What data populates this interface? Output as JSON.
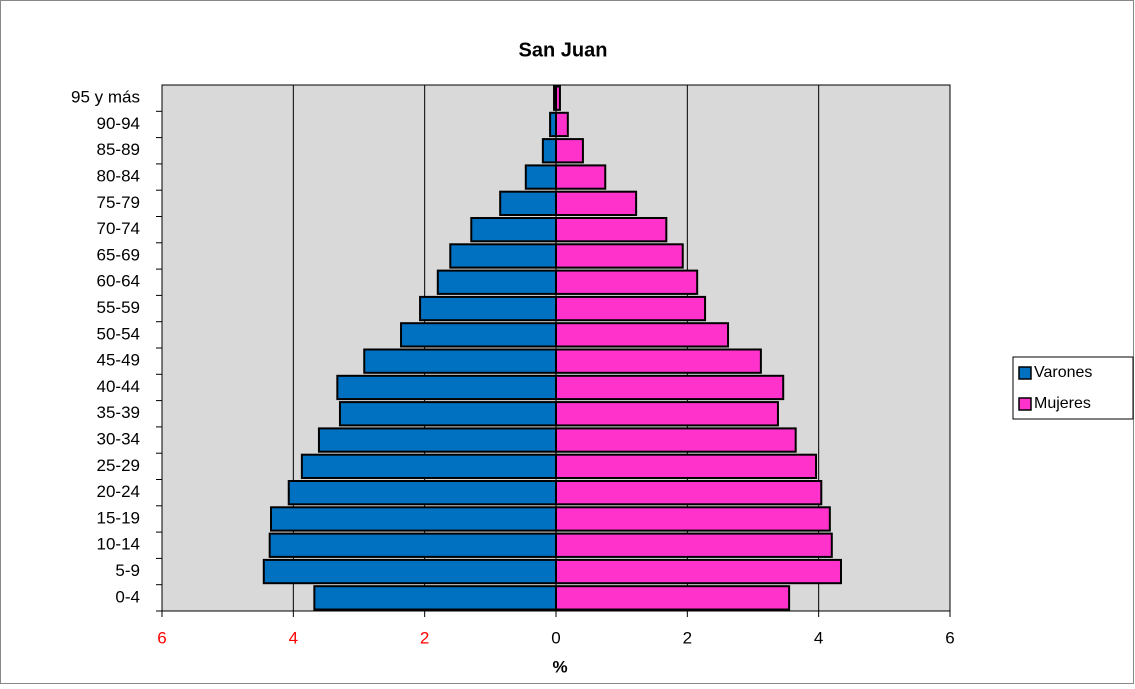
{
  "chart_data": {
    "type": "pyramid",
    "title": "San Juan",
    "x_label": "%",
    "categories": [
      "0-4",
      "5-9",
      "10-14",
      "15-19",
      "20-24",
      "25-29",
      "30-34",
      "35-39",
      "40-44",
      "45-49",
      "50-54",
      "55-59",
      "60-64",
      "65-69",
      "70-74",
      "75-79",
      "80-84",
      "85-89",
      "90-94",
      "95 y más"
    ],
    "series": [
      {
        "name": "Varones",
        "color": "#0070c0",
        "values": [
          -3.68,
          -4.45,
          -4.36,
          -4.34,
          -4.07,
          -3.87,
          -3.61,
          -3.29,
          -3.33,
          -2.92,
          -2.36,
          -2.07,
          -1.8,
          -1.61,
          -1.29,
          -0.85,
          -0.46,
          -0.2,
          -0.09,
          -0.03
        ]
      },
      {
        "name": "Mujeres",
        "color": "#ff33cc",
        "values": [
          3.55,
          4.34,
          4.2,
          4.17,
          4.04,
          3.96,
          3.65,
          3.38,
          3.46,
          3.12,
          2.62,
          2.27,
          2.15,
          1.93,
          1.68,
          1.22,
          0.75,
          0.41,
          0.18,
          0.06
        ]
      }
    ],
    "xlim": [
      -6,
      6
    ],
    "xticks": [
      {
        "value": -6,
        "label": "6"
      },
      {
        "value": -4,
        "label": "4"
      },
      {
        "value": -2,
        "label": "2"
      },
      0,
      2,
      4,
      6
    ],
    "negative_tick_color": "#ff0000",
    "plot_background": "#d9d9d9",
    "grid": true,
    "legend": "right"
  }
}
